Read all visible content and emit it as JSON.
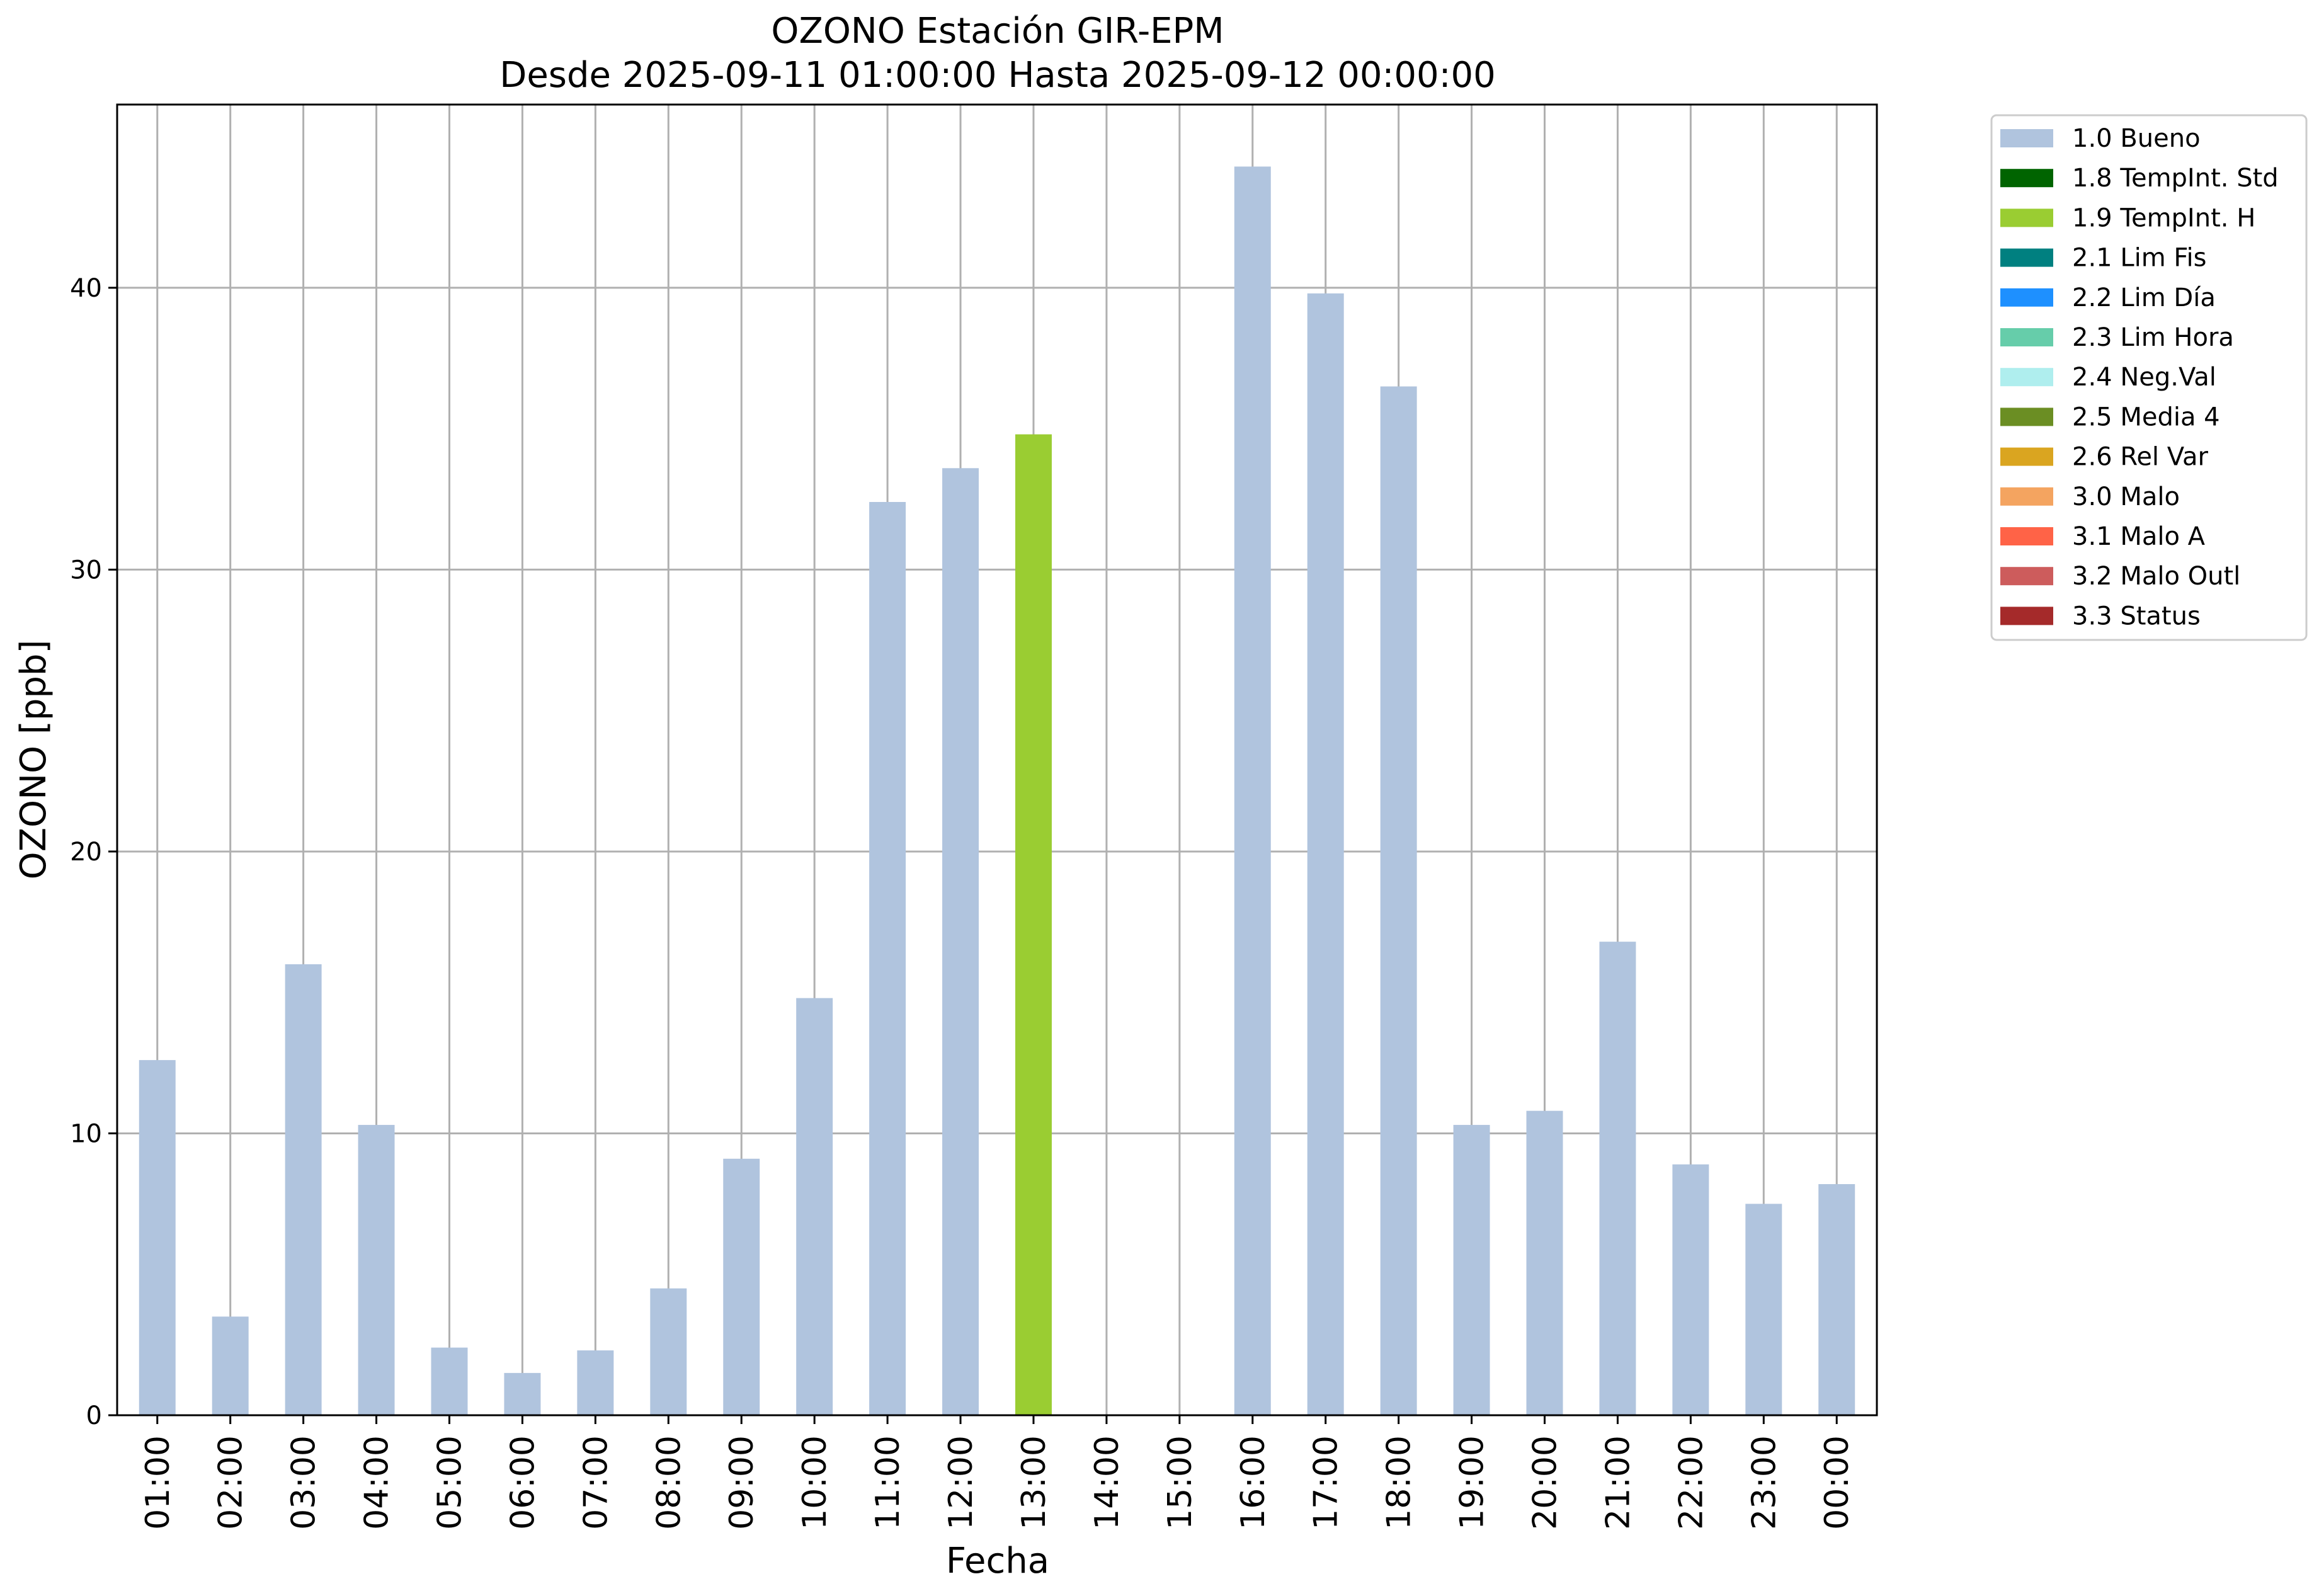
{
  "chart_data": {
    "type": "bar",
    "title": "OZONO Estación GIR-EPM",
    "subtitle": "Desde 2025-09-11 01:00:00 Hasta 2025-09-12 00:00:00",
    "xlabel": "Fecha",
    "ylabel": "OZONO [ppb]",
    "ylim": [
      0,
      46.5
    ],
    "yticks": [
      0,
      10,
      20,
      30,
      40
    ],
    "grid": true,
    "legend_position": "outside-top-right",
    "categories": [
      "01:00",
      "02:00",
      "03:00",
      "04:00",
      "05:00",
      "06:00",
      "07:00",
      "08:00",
      "09:00",
      "10:00",
      "11:00",
      "12:00",
      "13:00",
      "14:00",
      "15:00",
      "16:00",
      "17:00",
      "18:00",
      "19:00",
      "20:00",
      "21:00",
      "22:00",
      "23:00",
      "00:00"
    ],
    "series": [
      {
        "name": "1.0 Bueno",
        "color": "#b0c4de",
        "values": [
          12.6,
          3.5,
          16.0,
          10.3,
          2.4,
          1.5,
          2.3,
          4.5,
          9.1,
          14.8,
          32.4,
          33.6,
          null,
          null,
          null,
          44.3,
          39.8,
          36.5,
          10.3,
          10.8,
          16.8,
          8.9,
          7.5,
          8.2
        ]
      },
      {
        "name": "1.8 TempInt. Std",
        "color": "#006400",
        "values": [
          null,
          null,
          null,
          null,
          null,
          null,
          null,
          null,
          null,
          null,
          null,
          null,
          null,
          null,
          null,
          null,
          null,
          null,
          null,
          null,
          null,
          null,
          null,
          null
        ]
      },
      {
        "name": "1.9 TempInt. H",
        "color": "#9acd32",
        "values": [
          null,
          null,
          null,
          null,
          null,
          null,
          null,
          null,
          null,
          null,
          null,
          null,
          34.8,
          null,
          null,
          null,
          null,
          null,
          null,
          null,
          null,
          null,
          null,
          null
        ]
      },
      {
        "name": "2.1 Lim Fis",
        "color": "#008080",
        "values": [
          null,
          null,
          null,
          null,
          null,
          null,
          null,
          null,
          null,
          null,
          null,
          null,
          null,
          null,
          null,
          null,
          null,
          null,
          null,
          null,
          null,
          null,
          null,
          null
        ]
      },
      {
        "name": "2.2 Lim Día",
        "color": "#1e90ff",
        "values": [
          null,
          null,
          null,
          null,
          null,
          null,
          null,
          null,
          null,
          null,
          null,
          null,
          null,
          null,
          null,
          null,
          null,
          null,
          null,
          null,
          null,
          null,
          null,
          null
        ]
      },
      {
        "name": "2.3 Lim Hora",
        "color": "#66cdaa",
        "values": [
          null,
          null,
          null,
          null,
          null,
          null,
          null,
          null,
          null,
          null,
          null,
          null,
          null,
          null,
          null,
          null,
          null,
          null,
          null,
          null,
          null,
          null,
          null,
          null
        ]
      },
      {
        "name": "2.4 Neg.Val",
        "color": "#afeeee",
        "values": [
          null,
          null,
          null,
          null,
          null,
          null,
          null,
          null,
          null,
          null,
          null,
          null,
          null,
          null,
          null,
          null,
          null,
          null,
          null,
          null,
          null,
          null,
          null,
          null
        ]
      },
      {
        "name": "2.5 Media 4",
        "color": "#6b8e23",
        "values": [
          null,
          null,
          null,
          null,
          null,
          null,
          null,
          null,
          null,
          null,
          null,
          null,
          null,
          null,
          null,
          null,
          null,
          null,
          null,
          null,
          null,
          null,
          null,
          null
        ]
      },
      {
        "name": "2.6 Rel Var",
        "color": "#daa520",
        "values": [
          null,
          null,
          null,
          null,
          null,
          null,
          null,
          null,
          null,
          null,
          null,
          null,
          null,
          null,
          null,
          null,
          null,
          null,
          null,
          null,
          null,
          null,
          null,
          null
        ]
      },
      {
        "name": "3.0 Malo",
        "color": "#f4a460",
        "values": [
          null,
          null,
          null,
          null,
          null,
          null,
          null,
          null,
          null,
          null,
          null,
          null,
          null,
          null,
          null,
          null,
          null,
          null,
          null,
          null,
          null,
          null,
          null,
          null
        ]
      },
      {
        "name": "3.1 Malo A",
        "color": "#ff6347",
        "values": [
          null,
          null,
          null,
          null,
          null,
          null,
          null,
          null,
          null,
          null,
          null,
          null,
          null,
          null,
          null,
          null,
          null,
          null,
          null,
          null,
          null,
          null,
          null,
          null
        ]
      },
      {
        "name": "3.2 Malo Outl",
        "color": "#cd5c5c",
        "values": [
          null,
          null,
          null,
          null,
          null,
          null,
          null,
          null,
          null,
          null,
          null,
          null,
          null,
          null,
          null,
          null,
          null,
          null,
          null,
          null,
          null,
          null,
          null,
          null
        ]
      },
      {
        "name": "3.3 Status",
        "color": "#a52a2a",
        "values": [
          null,
          null,
          null,
          null,
          null,
          null,
          null,
          null,
          null,
          null,
          null,
          null,
          null,
          null,
          null,
          null,
          null,
          null,
          null,
          null,
          null,
          null,
          null,
          null
        ]
      }
    ]
  }
}
